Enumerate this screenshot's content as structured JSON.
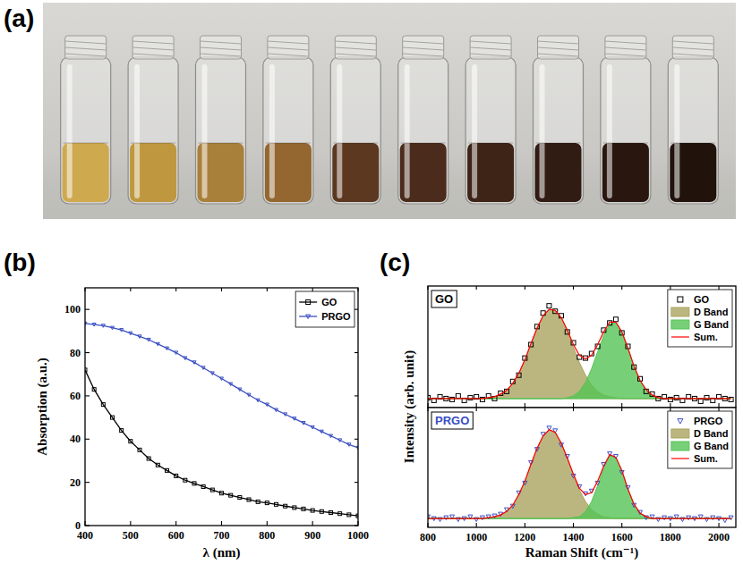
{
  "panel_labels": [
    "(a)",
    "(b)",
    "(c)"
  ],
  "photo": {
    "vial_colors": [
      "#cfa94e",
      "#bf973f",
      "#a9803a",
      "#93672f",
      "#5c3821",
      "#4b2b1b",
      "#3e2317",
      "#311c13",
      "#29170f",
      "#21120c"
    ]
  },
  "chart_data": [
    {
      "type": "line",
      "xlabel": "λ (nm)",
      "ylabel": "Absorption (a.u.)",
      "x": [
        400,
        420,
        440,
        460,
        480,
        500,
        520,
        540,
        560,
        580,
        600,
        620,
        640,
        660,
        680,
        700,
        720,
        740,
        760,
        780,
        800,
        820,
        840,
        860,
        880,
        900,
        920,
        940,
        960,
        980,
        1000
      ],
      "series": [
        {
          "name": "GO",
          "color": "#000000",
          "marker": "square",
          "values": [
            72,
            63,
            56,
            50,
            44,
            39,
            35,
            31,
            28,
            25.5,
            23,
            21,
            19.5,
            18,
            16.5,
            15,
            14,
            13,
            12,
            11,
            10.5,
            9.8,
            9,
            8.3,
            7.7,
            7,
            6.5,
            6,
            5.5,
            5,
            4.5
          ]
        },
        {
          "name": "PRGO",
          "color": "#3a4fc4",
          "marker": "triangle-down",
          "values": [
            93.5,
            93,
            92.5,
            91.5,
            90.5,
            89,
            87.5,
            86,
            84,
            82,
            80,
            77.5,
            75.5,
            73,
            70.5,
            68,
            65.5,
            63,
            60.5,
            58,
            56,
            53.5,
            51.5,
            49.5,
            47.5,
            45.5,
            43.5,
            41.5,
            39.5,
            37.5,
            36
          ]
        }
      ],
      "xlim": [
        400,
        1000
      ],
      "xticks": [
        400,
        500,
        600,
        700,
        800,
        900,
        1000
      ],
      "ylim": [
        0,
        110
      ],
      "yticks": [
        0,
        20,
        40,
        60,
        80,
        100
      ],
      "grid": false,
      "legend": "top-right"
    },
    {
      "type": "line",
      "title": "GO",
      "ylabel": "Intensity (arb. unit)",
      "x": [
        800,
        825,
        850,
        875,
        900,
        925,
        950,
        975,
        1000,
        1025,
        1050,
        1075,
        1100,
        1125,
        1150,
        1175,
        1200,
        1225,
        1250,
        1275,
        1300,
        1325,
        1350,
        1375,
        1400,
        1425,
        1450,
        1475,
        1500,
        1525,
        1550,
        1575,
        1600,
        1625,
        1650,
        1675,
        1700,
        1725,
        1750,
        1775,
        1800,
        1825,
        1850,
        1875,
        1900,
        1925,
        1950,
        1975,
        2000,
        2025,
        2050
      ],
      "series": [
        {
          "name": "GO",
          "type": "scatter",
          "marker": "square",
          "color": "#000000",
          "values": [
            0.01,
            -0.02,
            0.02,
            0.0,
            -0.01,
            0.03,
            -0.02,
            0.01,
            0.02,
            -0.01,
            0.03,
            0.0,
            0.06,
            0.08,
            0.19,
            0.26,
            0.45,
            0.6,
            0.8,
            0.95,
            1.03,
            0.97,
            0.92,
            0.74,
            0.62,
            0.46,
            0.45,
            0.5,
            0.58,
            0.76,
            0.84,
            0.88,
            0.73,
            0.58,
            0.35,
            0.22,
            0.08,
            0.05,
            0.0,
            0.02,
            -0.01,
            0.01,
            -0.02,
            0.02,
            0.0,
            -0.03,
            0.01,
            -0.02,
            0.02,
            0.0,
            -0.01
          ]
        },
        {
          "name": "D Band",
          "type": "area",
          "color": "#aaa45f",
          "values": [
            0,
            0,
            0,
            0,
            0,
            0,
            0,
            0,
            0,
            0,
            0.01,
            0.02,
            0.05,
            0.09,
            0.17,
            0.28,
            0.43,
            0.61,
            0.78,
            0.92,
            0.99,
            0.98,
            0.9,
            0.75,
            0.57,
            0.4,
            0.26,
            0.15,
            0.08,
            0.04,
            0.02,
            0.01,
            0,
            0,
            0,
            0,
            0,
            0,
            0,
            0,
            0,
            0,
            0,
            0,
            0,
            0,
            0,
            0,
            0,
            0,
            0
          ]
        },
        {
          "name": "G Band",
          "type": "area",
          "color": "#55c455",
          "values": [
            0,
            0,
            0,
            0,
            0,
            0,
            0,
            0,
            0,
            0,
            0,
            0,
            0,
            0,
            0,
            0,
            0,
            0,
            0,
            0,
            0,
            0,
            0,
            0.01,
            0.03,
            0.08,
            0.18,
            0.33,
            0.52,
            0.7,
            0.83,
            0.84,
            0.74,
            0.56,
            0.36,
            0.2,
            0.1,
            0.04,
            0.01,
            0,
            0,
            0,
            0,
            0,
            0,
            0,
            0,
            0,
            0,
            0,
            0
          ]
        },
        {
          "name": "Sum.",
          "type": "line",
          "color": "#ff0000",
          "values": [
            0,
            0,
            0,
            0,
            0,
            0,
            0,
            0,
            0,
            0,
            0.01,
            0.02,
            0.05,
            0.09,
            0.17,
            0.28,
            0.43,
            0.61,
            0.78,
            0.92,
            0.99,
            0.98,
            0.9,
            0.76,
            0.6,
            0.48,
            0.44,
            0.48,
            0.6,
            0.74,
            0.85,
            0.85,
            0.74,
            0.56,
            0.36,
            0.2,
            0.1,
            0.04,
            0.01,
            0,
            0,
            0,
            0,
            0,
            0,
            0,
            0,
            0,
            0,
            0,
            0
          ]
        }
      ],
      "xlim": [
        800,
        2070
      ],
      "xticks": [
        800,
        1000,
        1200,
        1400,
        1600,
        1800,
        2000
      ],
      "ylim": [
        -0.1,
        1.25
      ],
      "grid": false,
      "legend": "top-right",
      "tick_labels": false
    },
    {
      "type": "line",
      "title": "PRGO",
      "xlabel": "Raman Shift (cm⁻¹)",
      "x": [
        800,
        825,
        850,
        875,
        900,
        925,
        950,
        975,
        1000,
        1025,
        1050,
        1075,
        1100,
        1125,
        1150,
        1175,
        1200,
        1225,
        1250,
        1275,
        1300,
        1325,
        1350,
        1375,
        1400,
        1425,
        1450,
        1475,
        1500,
        1525,
        1550,
        1575,
        1600,
        1625,
        1650,
        1675,
        1700,
        1725,
        1750,
        1775,
        1800,
        1825,
        1850,
        1875,
        1900,
        1925,
        1950,
        1975,
        2000,
        2025,
        2050
      ],
      "series": [
        {
          "name": "PRGO",
          "type": "scatter",
          "marker": "triangle-down",
          "color": "#3a4fc4",
          "values": [
            0.02,
            0.0,
            -0.01,
            0.01,
            0.02,
            -0.01,
            0.0,
            0.02,
            -0.01,
            0.01,
            0.02,
            0.03,
            0.05,
            0.1,
            0.14,
            0.29,
            0.4,
            0.63,
            0.78,
            0.95,
            1.02,
            0.99,
            0.83,
            0.7,
            0.48,
            0.36,
            0.28,
            0.31,
            0.4,
            0.61,
            0.73,
            0.7,
            0.52,
            0.35,
            0.15,
            0.07,
            0.01,
            0.02,
            -0.01,
            0.01,
            0.0,
            0.02,
            -0.01,
            0.01,
            0.0,
            0.02,
            -0.01,
            0.01,
            0.0,
            -0.02,
            0.01
          ]
        },
        {
          "name": "D Band",
          "type": "area",
          "color": "#aaa45f",
          "values": [
            0,
            0,
            0,
            0,
            0,
            0,
            0,
            0,
            0,
            0,
            0.01,
            0.02,
            0.04,
            0.08,
            0.15,
            0.27,
            0.42,
            0.61,
            0.79,
            0.93,
            1.0,
            0.97,
            0.85,
            0.68,
            0.49,
            0.32,
            0.19,
            0.1,
            0.05,
            0.02,
            0.01,
            0,
            0,
            0,
            0,
            0,
            0,
            0,
            0,
            0,
            0,
            0,
            0,
            0,
            0,
            0,
            0,
            0,
            0,
            0,
            0
          ]
        },
        {
          "name": "G Band",
          "type": "area",
          "color": "#55c455",
          "values": [
            0,
            0,
            0,
            0,
            0,
            0,
            0,
            0,
            0,
            0,
            0,
            0,
            0,
            0,
            0,
            0,
            0,
            0,
            0,
            0,
            0,
            0,
            0,
            0,
            0.01,
            0.02,
            0.08,
            0.19,
            0.37,
            0.57,
            0.71,
            0.69,
            0.54,
            0.33,
            0.16,
            0.06,
            0.02,
            0,
            0,
            0,
            0,
            0,
            0,
            0,
            0,
            0,
            0,
            0,
            0,
            0,
            0
          ]
        },
        {
          "name": "Sum.",
          "type": "line",
          "color": "#ff0000",
          "values": [
            0,
            0,
            0,
            0,
            0,
            0,
            0,
            0,
            0,
            0,
            0.01,
            0.02,
            0.04,
            0.08,
            0.15,
            0.27,
            0.42,
            0.61,
            0.79,
            0.93,
            1.0,
            0.97,
            0.85,
            0.68,
            0.5,
            0.34,
            0.27,
            0.29,
            0.42,
            0.59,
            0.72,
            0.69,
            0.54,
            0.33,
            0.16,
            0.06,
            0.02,
            0,
            0,
            0,
            0,
            0,
            0,
            0,
            0,
            0,
            0,
            0,
            0,
            0,
            0
          ]
        }
      ],
      "xlim": [
        800,
        2070
      ],
      "xticks": [
        800,
        1000,
        1200,
        1400,
        1600,
        1800,
        2000
      ],
      "ylim": [
        -0.1,
        1.25
      ],
      "grid": false,
      "legend": "top-right",
      "tick_labels": "x"
    }
  ]
}
